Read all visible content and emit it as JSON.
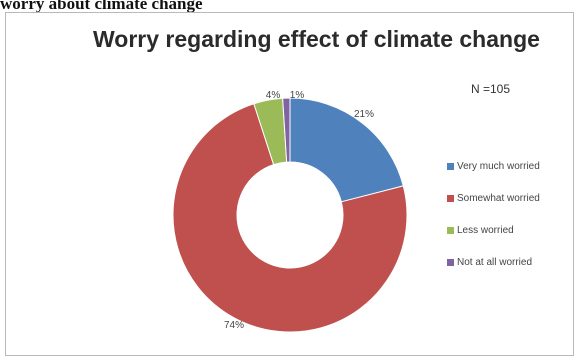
{
  "caption": "worry about climate change",
  "chart_data": {
    "type": "pie",
    "style": "donut",
    "title": "Worry regarding effect of climate change",
    "annotation": "N =105",
    "legend_position": "right",
    "slices": [
      {
        "label": "Very much worried",
        "value": 21,
        "display": "21%",
        "color": "#4f81bd"
      },
      {
        "label": "Somewhat worried",
        "value": 74,
        "display": "74%",
        "color": "#c0504d"
      },
      {
        "label": "Less worried",
        "value": 4,
        "display": "4%",
        "color": "#9bbb59"
      },
      {
        "label": "Not at all worried",
        "value": 1,
        "display": "1%",
        "color": "#8064a2"
      }
    ]
  }
}
